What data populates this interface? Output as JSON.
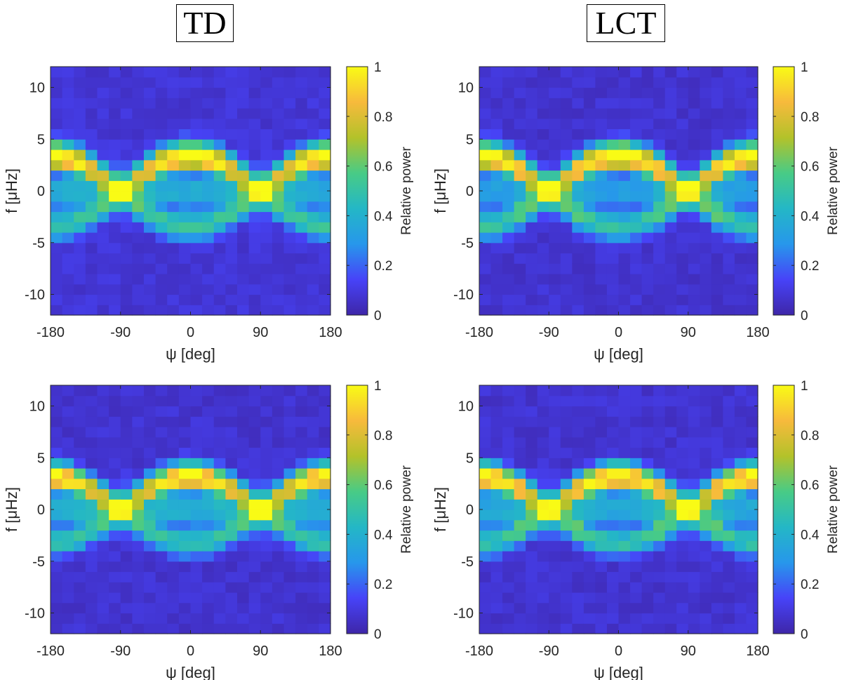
{
  "column_titles": [
    "TD",
    "LCT"
  ],
  "colormap": {
    "name": "parula",
    "stops": [
      "#3e26a8",
      "#4743f8",
      "#2797eb",
      "#24b7c6",
      "#48cb86",
      "#b3c22a",
      "#f7ba3c",
      "#f9fb15"
    ]
  },
  "chart_data": [
    {
      "type": "heatmap",
      "panel": "top-left",
      "column": "TD",
      "xlabel": "ψ [deg]",
      "ylabel": "f [μHz]",
      "xlim": [
        -180,
        180
      ],
      "ylim": [
        -12,
        12
      ],
      "xticks": [
        -180,
        -90,
        0,
        90,
        180
      ],
      "yticks": [
        -10,
        -5,
        0,
        5,
        10
      ],
      "xtick_labels": [
        "-180",
        "-90",
        "0",
        "90",
        "180"
      ],
      "ytick_labels": [
        "-10",
        "-5",
        "0",
        "5",
        "10"
      ],
      "colorbar": {
        "label": "Relative power",
        "range": [
          0,
          1
        ],
        "ticks": [
          "0",
          "0.2",
          "0.4",
          "0.6",
          "0.8",
          "1"
        ]
      },
      "grid": {
        "nx": 24,
        "f_min": -12,
        "f_max": 12,
        "f_step": 1
      },
      "model": {
        "ridge_amp": 3.4,
        "ridge_width": 1.0,
        "bg": 0.08,
        "center_band": 0.5,
        "upper_peak": 1.0,
        "lower_peak": 1.0,
        "shoulder": 0.0
      }
    },
    {
      "type": "heatmap",
      "panel": "top-right",
      "column": "LCT",
      "xlabel": "ψ [deg]",
      "ylabel": "f [μHz]",
      "xlim": [
        -180,
        180
      ],
      "ylim": [
        -12,
        12
      ],
      "xticks": [
        -180,
        -90,
        0,
        90,
        180
      ],
      "yticks": [
        -10,
        -5,
        0,
        5,
        10
      ],
      "xtick_labels": [
        "-180",
        "-90",
        "0",
        "90",
        "180"
      ],
      "ytick_labels": [
        "-10",
        "-5",
        "0",
        "5",
        "10"
      ],
      "colorbar": {
        "label": "Relative power",
        "range": [
          0,
          1
        ],
        "ticks": [
          "0",
          "0.2",
          "0.4",
          "0.6",
          "0.8",
          "1"
        ]
      },
      "grid": {
        "nx": 24,
        "f_min": -12,
        "f_max": 12,
        "f_step": 1
      },
      "model": {
        "ridge_amp": 3.4,
        "ridge_width": 1.0,
        "bg": 0.07,
        "center_band": 0.42,
        "upper_peak": 1.0,
        "lower_peak": 1.0,
        "shoulder": 0.85
      }
    },
    {
      "type": "heatmap",
      "panel": "bottom-left",
      "column": "TD",
      "xlabel": "ψ [deg]",
      "ylabel": "f [μHz]",
      "xlim": [
        -180,
        180
      ],
      "ylim": [
        -12,
        12
      ],
      "xticks": [
        -180,
        -90,
        0,
        90,
        180
      ],
      "yticks": [
        -10,
        -5,
        0,
        5,
        10
      ],
      "xtick_labels": [
        "-180",
        "-90",
        "0",
        "90",
        "180"
      ],
      "ytick_labels": [
        "-10",
        "-5",
        "0",
        "5",
        "10"
      ],
      "colorbar": {
        "label": "Relative power",
        "range": [
          0,
          1
        ],
        "ticks": [
          "0",
          "0.2",
          "0.4",
          "0.6",
          "0.8",
          "1"
        ]
      },
      "grid": {
        "nx": 24,
        "f_min": -12,
        "f_max": 12,
        "f_step": 1
      },
      "model": {
        "ridge_amp": 3.2,
        "ridge_width": 0.95,
        "bg": 0.07,
        "center_band": 0.55,
        "upper_peak": 1.0,
        "lower_peak": 1.0,
        "shoulder": 0.0
      }
    },
    {
      "type": "heatmap",
      "panel": "bottom-right",
      "column": "LCT",
      "xlabel": "ψ [deg]",
      "ylabel": "f [μHz]",
      "xlim": [
        -180,
        180
      ],
      "ylim": [
        -12,
        12
      ],
      "xticks": [
        -180,
        -90,
        0,
        90,
        180
      ],
      "yticks": [
        -10,
        -5,
        0,
        5,
        10
      ],
      "xtick_labels": [
        "-180",
        "-90",
        "0",
        "90",
        "180"
      ],
      "ytick_labels": [
        "-10",
        "-5",
        "0",
        "5",
        "10"
      ],
      "colorbar": {
        "label": "Relative power",
        "range": [
          0,
          1
        ],
        "ticks": [
          "0",
          "0.2",
          "0.4",
          "0.6",
          "0.8",
          "1"
        ]
      },
      "grid": {
        "nx": 24,
        "f_min": -12,
        "f_max": 12,
        "f_step": 1
      },
      "model": {
        "ridge_amp": 3.2,
        "ridge_width": 0.95,
        "bg": 0.07,
        "center_band": 0.5,
        "upper_peak": 1.0,
        "lower_peak": 1.0,
        "shoulder": 0.85
      }
    }
  ]
}
